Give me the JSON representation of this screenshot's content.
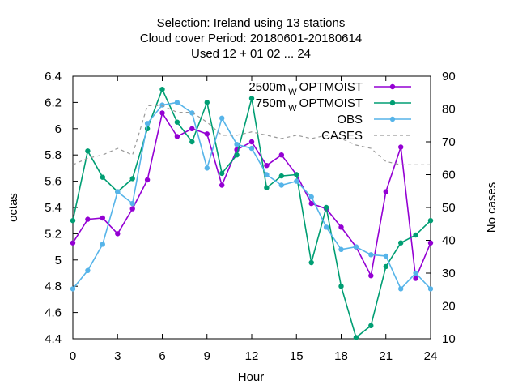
{
  "chart_data": {
    "type": "line",
    "title_lines": [
      "Selection: Ireland using    13 stations",
      "Cloud cover   Period: 20180601-20180614",
      "Used  12 + 01 02 ... 24"
    ],
    "xlabel": "Hour",
    "ylabel": "octas",
    "y2label": "No cases",
    "xlim": [
      0,
      24
    ],
    "ylim": [
      4.4,
      6.4
    ],
    "y2lim": [
      10,
      90
    ],
    "xticks": [
      "0",
      "3",
      "6",
      "9",
      "12",
      "15",
      "18",
      "21",
      "24"
    ],
    "yticks": [
      "4.4",
      "4.6",
      "4.8",
      "5",
      "5.2",
      "5.4",
      "5.6",
      "5.8",
      "6",
      "6.2",
      "6.4"
    ],
    "y2ticks": [
      "10",
      "20",
      "30",
      "40",
      "50",
      "60",
      "70",
      "80",
      "90"
    ],
    "legend_position": "top-right",
    "x": [
      0,
      1,
      2,
      3,
      4,
      5,
      6,
      7,
      8,
      9,
      10,
      11,
      12,
      13,
      14,
      15,
      16,
      17,
      18,
      19,
      20,
      21,
      22,
      23,
      24
    ],
    "series": [
      {
        "name": "2500m",
        "name_sub": "W",
        "name_rest": "OPTMOIST",
        "color": "#9400d3",
        "marker": "dot",
        "axis": "y",
        "values": [
          5.13,
          5.31,
          5.32,
          5.2,
          5.39,
          5.61,
          6.12,
          5.94,
          6.0,
          5.96,
          5.57,
          5.84,
          5.9,
          5.72,
          5.8,
          5.65,
          5.43,
          5.39,
          5.25,
          5.1,
          4.88,
          5.52,
          5.86,
          4.86,
          5.13
        ]
      },
      {
        "name": "750m",
        "name_sub": "W",
        "name_rest": "OPTMOIST",
        "color": "#009e73",
        "marker": "dot",
        "axis": "y",
        "values": [
          5.3,
          5.83,
          5.63,
          5.52,
          5.62,
          6.0,
          6.3,
          6.05,
          5.9,
          6.2,
          5.66,
          5.8,
          6.23,
          5.55,
          5.64,
          5.65,
          4.98,
          5.4,
          4.8,
          4.41,
          4.5,
          4.95,
          5.13,
          5.19,
          5.3
        ]
      },
      {
        "name": "OBS",
        "color": "#56b4e9",
        "marker": "dot",
        "axis": "y",
        "values": [
          4.78,
          4.92,
          5.12,
          5.52,
          5.43,
          6.04,
          6.18,
          6.2,
          6.12,
          5.7,
          6.08,
          5.88,
          5.85,
          5.65,
          5.57,
          5.6,
          5.48,
          5.25,
          5.08,
          5.1,
          5.04,
          5.03,
          4.78,
          4.9,
          4.78
        ]
      },
      {
        "name": "CASES",
        "color": "#999999",
        "dashed": true,
        "axis": "y2",
        "values": [
          63,
          65,
          66,
          68,
          66,
          81,
          81,
          79,
          79,
          76,
          72,
          72,
          73,
          72,
          71,
          72,
          71,
          72,
          71,
          69,
          68,
          64,
          63,
          63,
          63
        ]
      }
    ]
  }
}
